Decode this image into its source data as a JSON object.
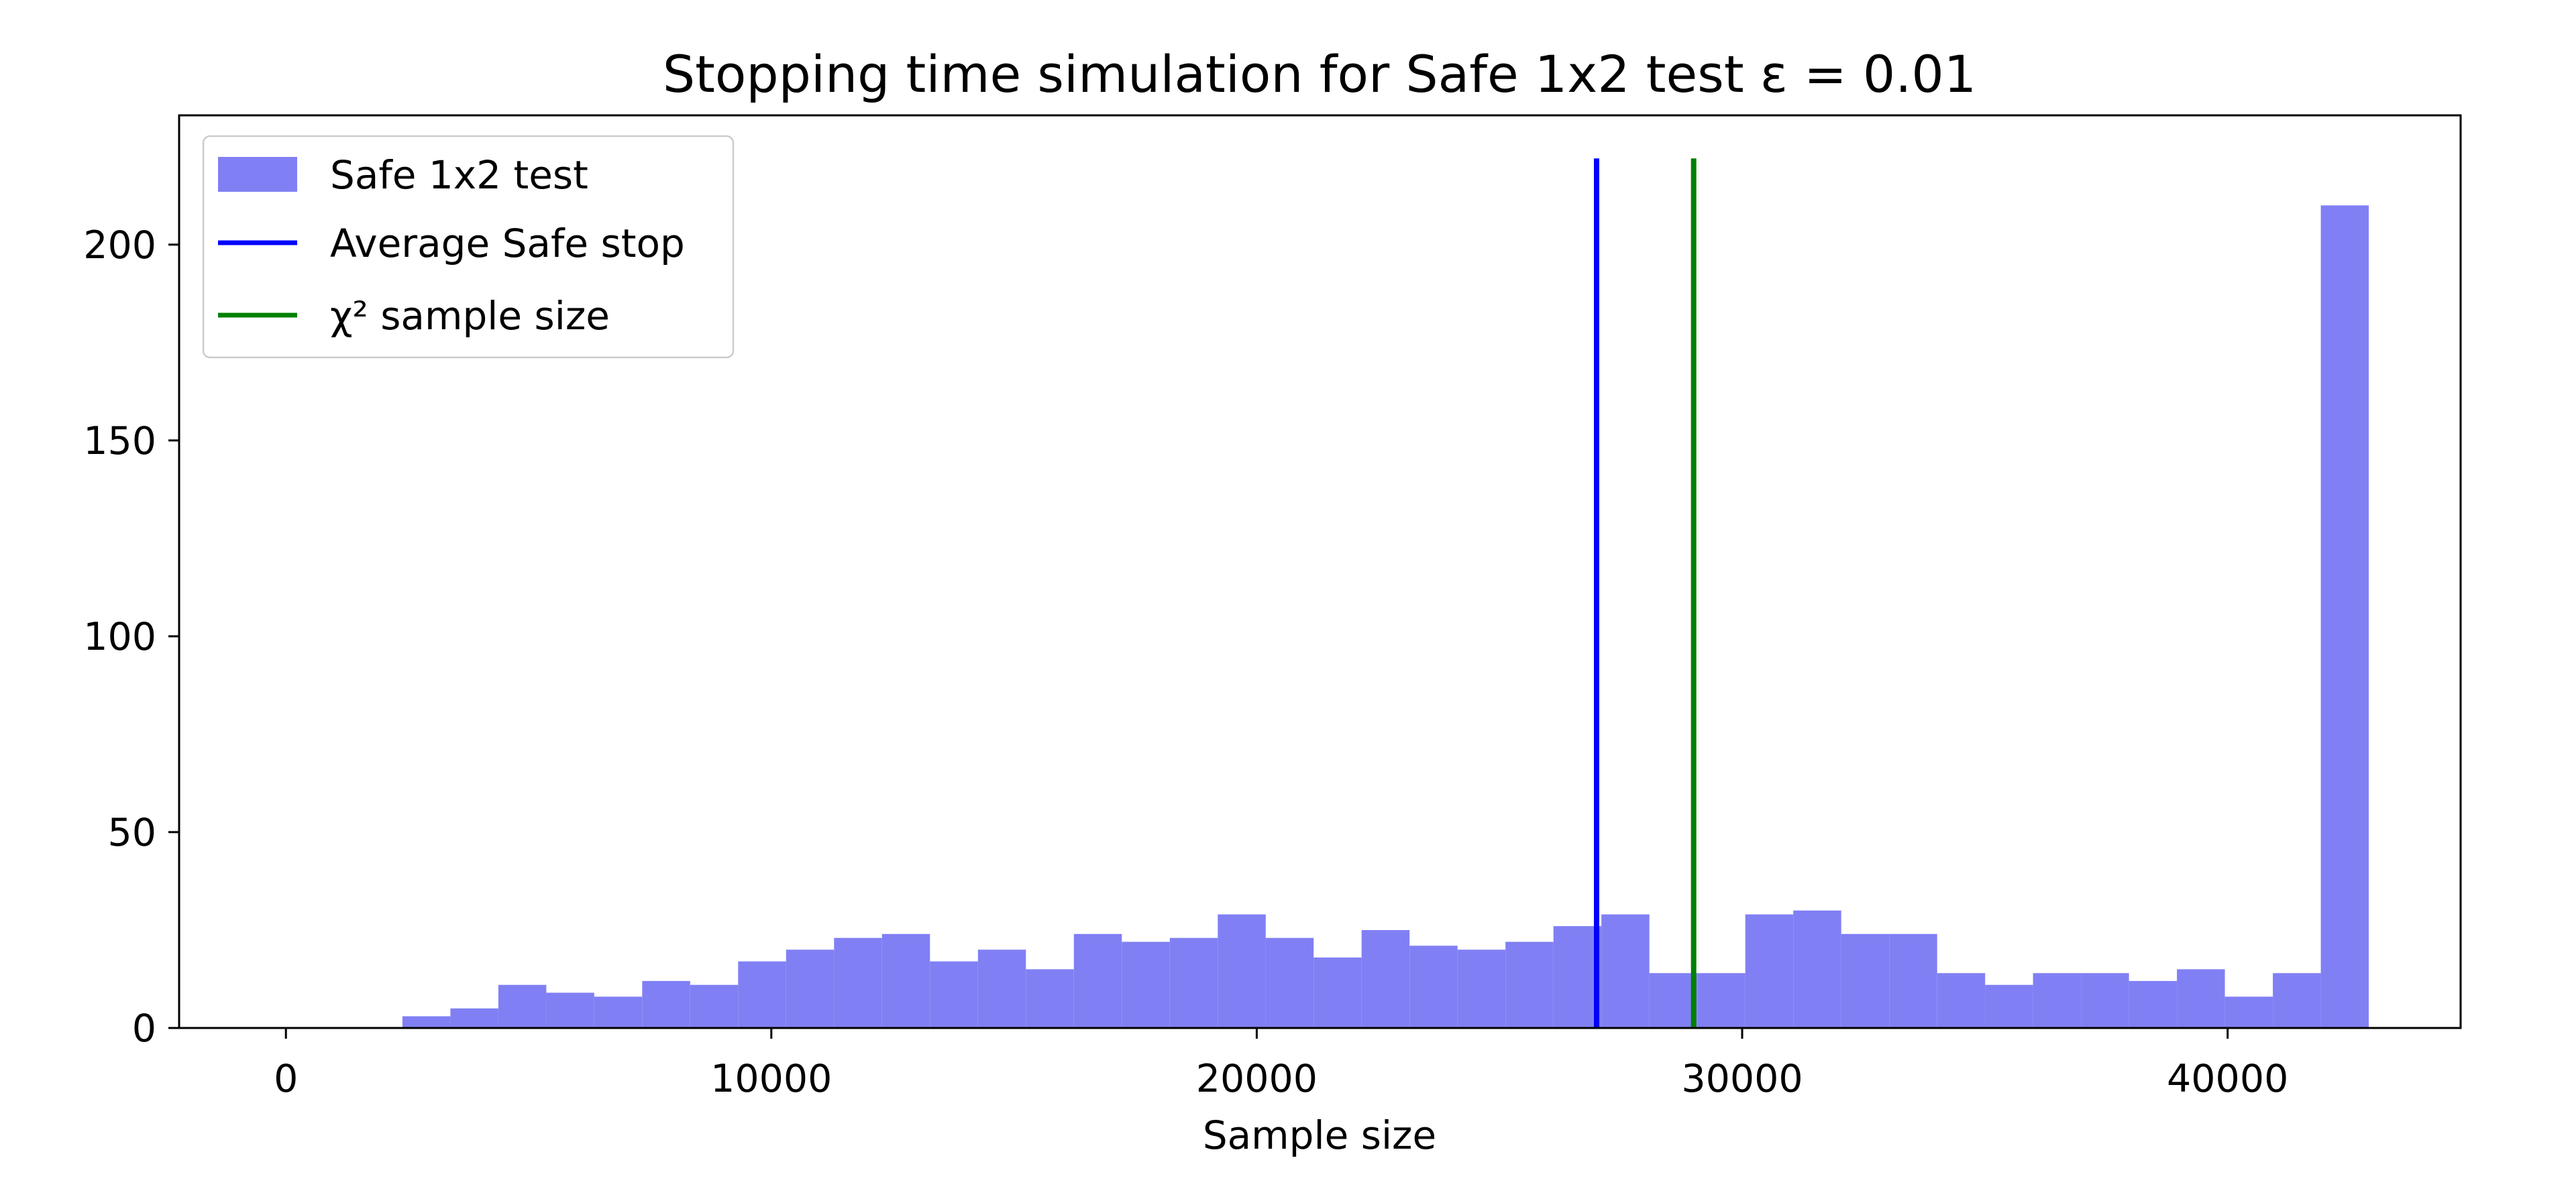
{
  "figure": {
    "background": "#ffffff",
    "frame_color": "#000000",
    "text_color": "#000000"
  },
  "chart_data": {
    "type": "histogram",
    "title": "Stopping time simulation for Safe 1x2 test ε = 0.01",
    "xlabel": "Sample size",
    "ylabel": "",
    "xlim": [
      -2200,
      44800
    ],
    "ylim": [
      0,
      233
    ],
    "xticks": [
      0,
      10000,
      20000,
      30000,
      40000
    ],
    "yticks": [
      0,
      50,
      100,
      150,
      200
    ],
    "grid": false,
    "legend_position": "upper left",
    "histogram": {
      "label": "Safe 1x2 test",
      "color": "#8080f4",
      "bin_start": 2400,
      "bin_width": 988,
      "counts": [
        3,
        5,
        11,
        9,
        8,
        12,
        11,
        17,
        20,
        23,
        24,
        17,
        20,
        15,
        24,
        22,
        23,
        29,
        23,
        18,
        25,
        21,
        20,
        22,
        26,
        29,
        14,
        14,
        29,
        30,
        24,
        24,
        14,
        11,
        14,
        14,
        12,
        15,
        8,
        14,
        210
      ]
    },
    "vlines": [
      {
        "label": "Average Safe stop",
        "x": 27000,
        "color": "#0000ff",
        "top": 222
      },
      {
        "label": "χ² sample size",
        "x": 29000,
        "color": "#008000",
        "top": 222
      }
    ],
    "legend": [
      {
        "label": "Safe 1x2 test",
        "type": "patch",
        "color": "#8080f4"
      },
      {
        "label": "Average Safe stop",
        "type": "line",
        "color": "#0000ff"
      },
      {
        "label": "χ² sample size",
        "type": "line",
        "color": "#008000"
      }
    ]
  }
}
